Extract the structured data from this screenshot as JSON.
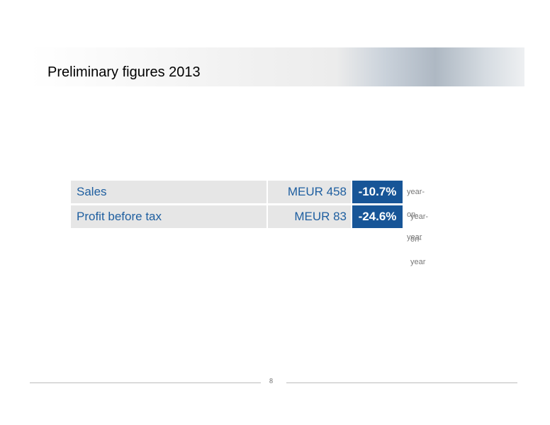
{
  "title": "Preliminary figures 2013",
  "table": {
    "rows": [
      [
        "Sales",
        "MEUR 458",
        "-10.7%",
        "year-on-year"
      ],
      [
        "Profit before tax",
        "MEUR 83",
        "-24.6%",
        "year-on-year"
      ]
    ]
  },
  "page_number": "8"
}
